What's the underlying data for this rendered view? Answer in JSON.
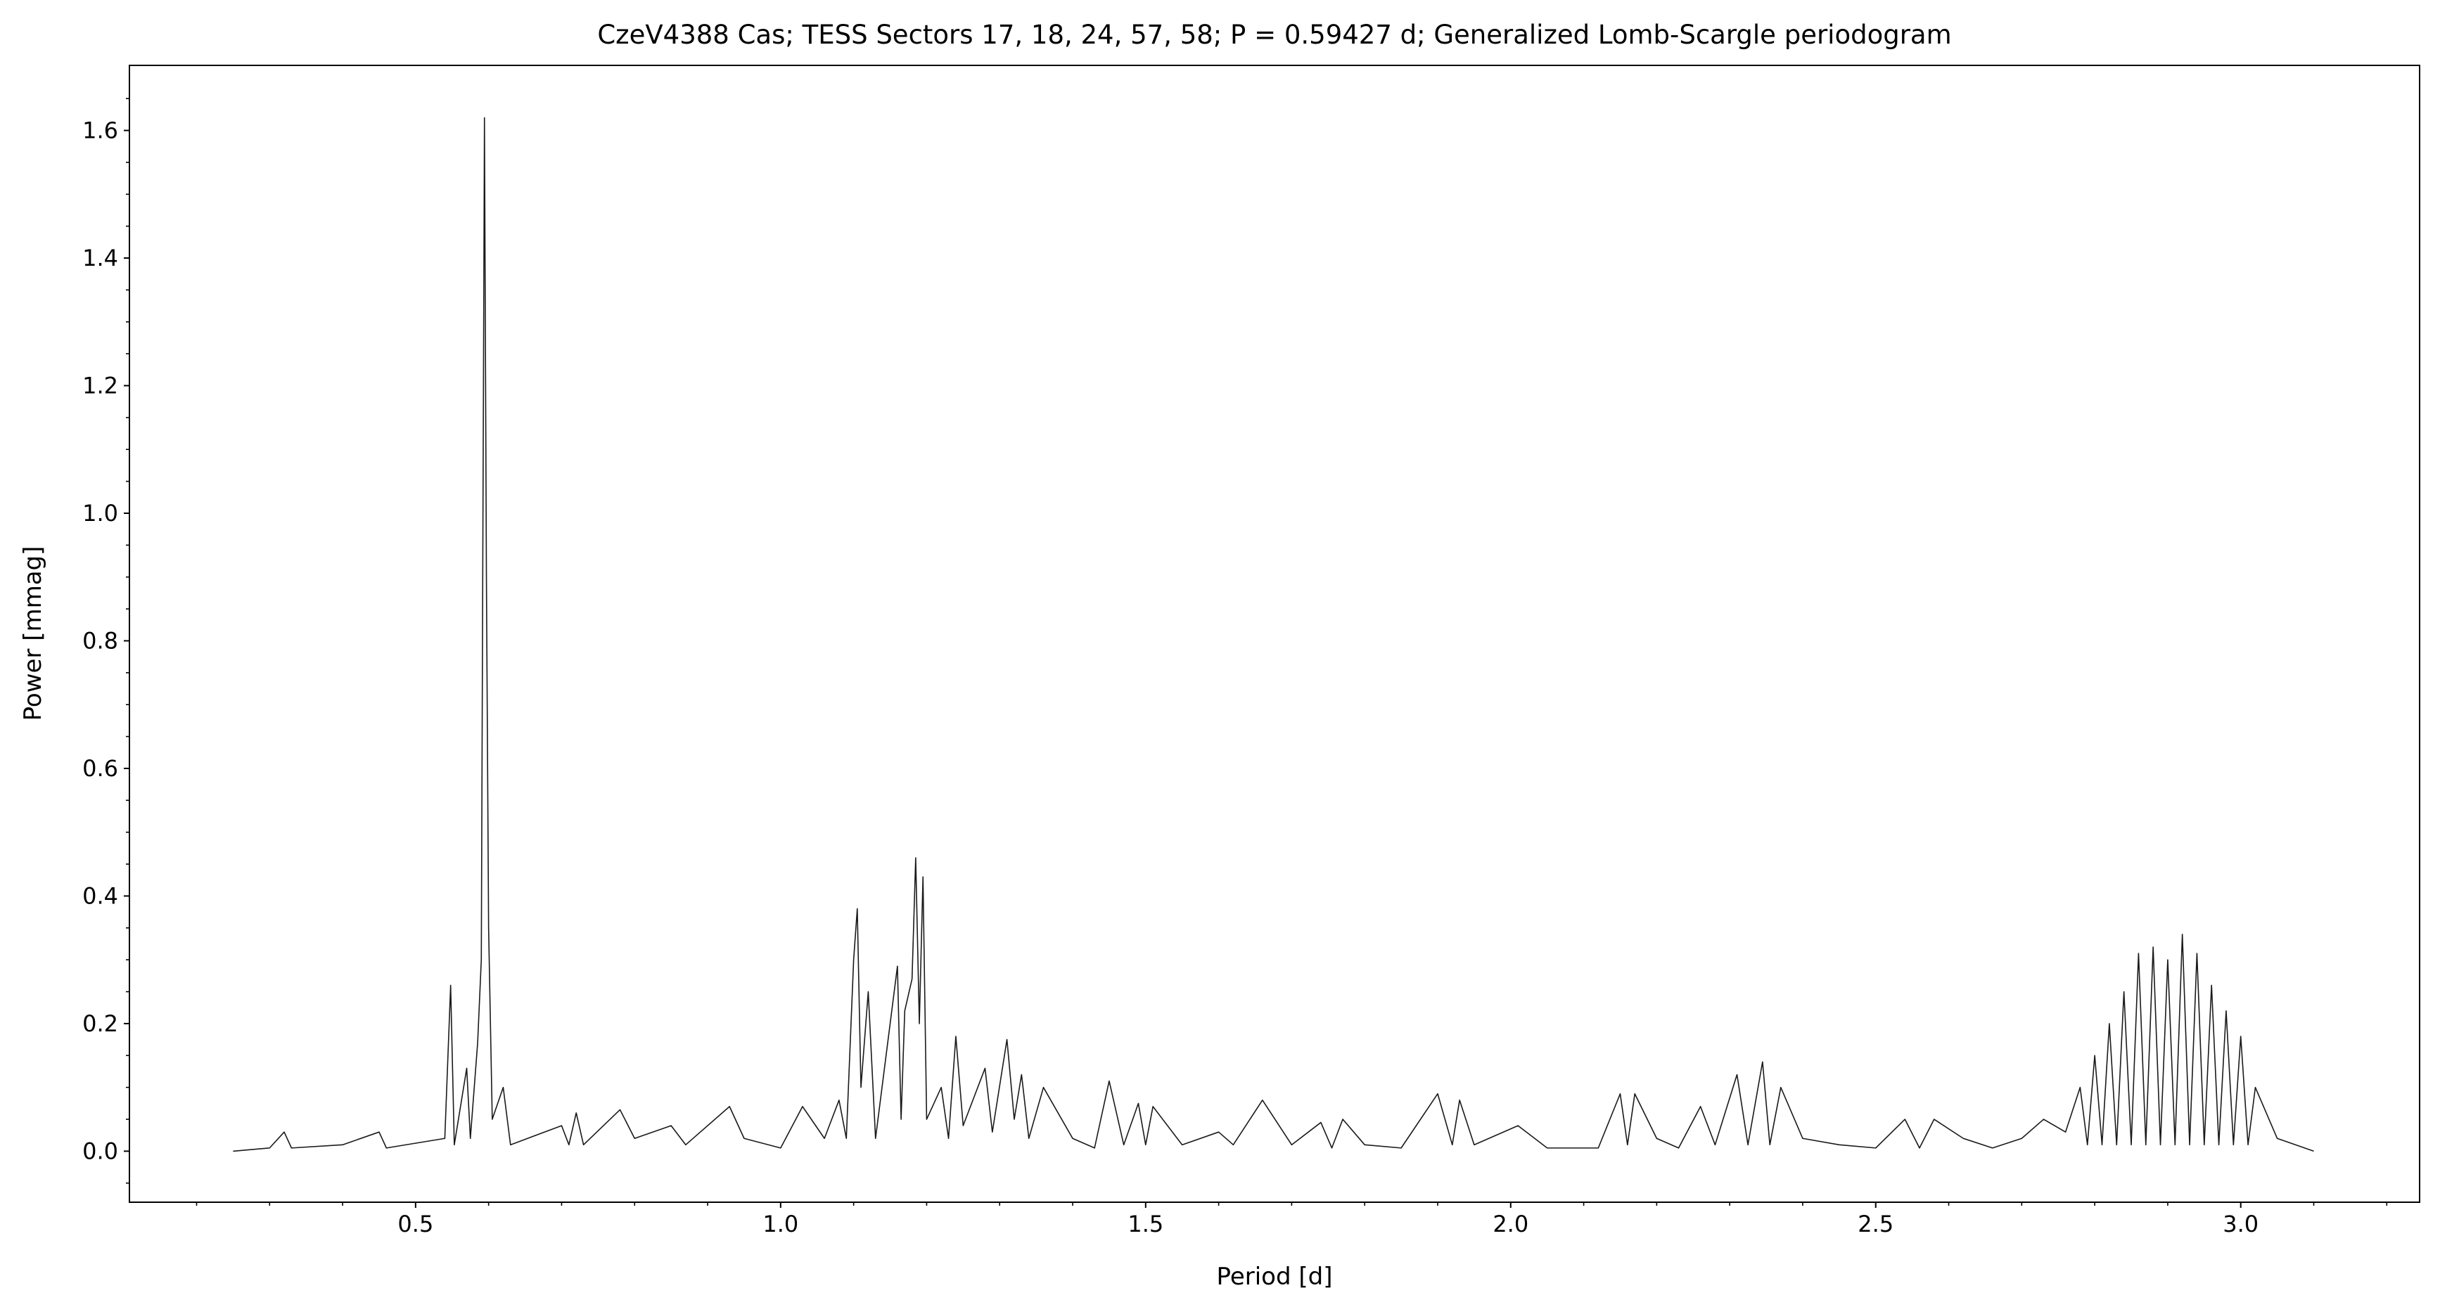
{
  "chart_data": {
    "type": "line",
    "title": "CzeV4388 Cas; TESS Sectors 17, 18, 24, 57, 58; P = 0.59427 d; Generalized Lomb-Scargle periodogram",
    "xlabel": "Period [d]",
    "ylabel": "Power [mmag]",
    "xlim": [
      0.108,
      3.245
    ],
    "ylim": [
      -0.08,
      1.702
    ],
    "xticks": [
      0.5,
      {
        "value": 1,
        "label": "1.0"
      },
      1.5,
      {
        "value": 2,
        "label": "2.0"
      },
      2.5,
      {
        "value": 3,
        "label": "3.0"
      }
    ],
    "yticks": [
      {
        "value": 0,
        "label": "0.0"
      },
      0.2,
      0.4,
      0.6,
      0.8,
      {
        "value": 1,
        "label": "1.0"
      },
      1.2,
      1.4,
      1.6
    ],
    "xminorticks": [
      0.2,
      0.3,
      0.4,
      0.6,
      0.7,
      0.8,
      0.9,
      1.1,
      1.2,
      1.3,
      1.4,
      1.6,
      1.7,
      1.8,
      1.9,
      2.1,
      2.2,
      2.3,
      2.4,
      2.6,
      2.7,
      2.8,
      2.9,
      3.1,
      3.2
    ],
    "yminorticks": [
      -0.05,
      0.05,
      0.1,
      0.15,
      0.25,
      0.3,
      0.35,
      0.45,
      0.5,
      0.55,
      0.65,
      0.7,
      0.75,
      0.85,
      0.9,
      0.95,
      1.05,
      1.1,
      1.15,
      1.25,
      1.3,
      1.35,
      1.45,
      1.5,
      1.55,
      1.65
    ],
    "color": "#1a1a1a",
    "x": [
      0.25,
      0.3,
      0.32,
      0.33,
      0.4,
      0.45,
      0.46,
      0.54,
      0.548,
      0.553,
      0.57,
      0.575,
      0.585,
      0.59,
      0.5943,
      0.597,
      0.6,
      0.605,
      0.62,
      0.63,
      0.7,
      0.71,
      0.72,
      0.73,
      0.78,
      0.8,
      0.85,
      0.87,
      0.93,
      0.95,
      1.0,
      1.03,
      1.06,
      1.08,
      1.09,
      1.1,
      1.105,
      1.11,
      1.12,
      1.13,
      1.16,
      1.165,
      1.17,
      1.18,
      1.185,
      1.19,
      1.195,
      1.2,
      1.22,
      1.23,
      1.24,
      1.25,
      1.28,
      1.29,
      1.31,
      1.32,
      1.33,
      1.34,
      1.36,
      1.4,
      1.43,
      1.45,
      1.47,
      1.49,
      1.5,
      1.51,
      1.55,
      1.6,
      1.62,
      1.66,
      1.7,
      1.74,
      1.755,
      1.77,
      1.8,
      1.85,
      1.9,
      1.92,
      1.93,
      1.95,
      2.01,
      2.05,
      2.12,
      2.15,
      2.16,
      2.17,
      2.2,
      2.23,
      2.26,
      2.28,
      2.31,
      2.325,
      2.345,
      2.355,
      2.37,
      2.4,
      2.45,
      2.5,
      2.54,
      2.56,
      2.58,
      2.62,
      2.66,
      2.7,
      2.73,
      2.76,
      2.78,
      2.79,
      2.8,
      2.81,
      2.82,
      2.83,
      2.84,
      2.85,
      2.86,
      2.87,
      2.88,
      2.89,
      2.9,
      2.91,
      2.92,
      2.93,
      2.94,
      2.95,
      2.96,
      2.97,
      2.98,
      2.99,
      3.0,
      3.01,
      3.02,
      3.05,
      3.1
    ],
    "values": [
      0,
      0.005,
      0.03,
      0.005,
      0.01,
      0.03,
      0.005,
      0.02,
      0.26,
      0.01,
      0.13,
      0.02,
      0.17,
      0.3,
      1.62,
      0.9,
      0.35,
      0.05,
      0.1,
      0.01,
      0.04,
      0.01,
      0.06,
      0.01,
      0.065,
      0.02,
      0.04,
      0.01,
      0.07,
      0.02,
      0.005,
      0.07,
      0.02,
      0.08,
      0.02,
      0.3,
      0.38,
      0.1,
      0.25,
      0.02,
      0.29,
      0.05,
      0.22,
      0.27,
      0.46,
      0.2,
      0.43,
      0.05,
      0.1,
      0.02,
      0.18,
      0.04,
      0.13,
      0.03,
      0.175,
      0.05,
      0.12,
      0.02,
      0.1,
      0.02,
      0.005,
      0.11,
      0.01,
      0.075,
      0.01,
      0.07,
      0.01,
      0.03,
      0.01,
      0.08,
      0.01,
      0.045,
      0.005,
      0.05,
      0.01,
      0.005,
      0.09,
      0.01,
      0.08,
      0.01,
      0.04,
      0.005,
      0.005,
      0.09,
      0.01,
      0.09,
      0.02,
      0.005,
      0.07,
      0.01,
      0.12,
      0.01,
      0.14,
      0.01,
      0.1,
      0.02,
      0.01,
      0.005,
      0.05,
      0.005,
      0.05,
      0.02,
      0.005,
      0.02,
      0.05,
      0.03,
      0.1,
      0.01,
      0.15,
      0.01,
      0.2,
      0.01,
      0.25,
      0.01,
      0.31,
      0.01,
      0.32,
      0.01,
      0.3,
      0.01,
      0.34,
      0.01,
      0.31,
      0.01,
      0.26,
      0.01,
      0.22,
      0.01,
      0.18,
      0.01,
      0.1,
      0.02,
      0
    ]
  }
}
